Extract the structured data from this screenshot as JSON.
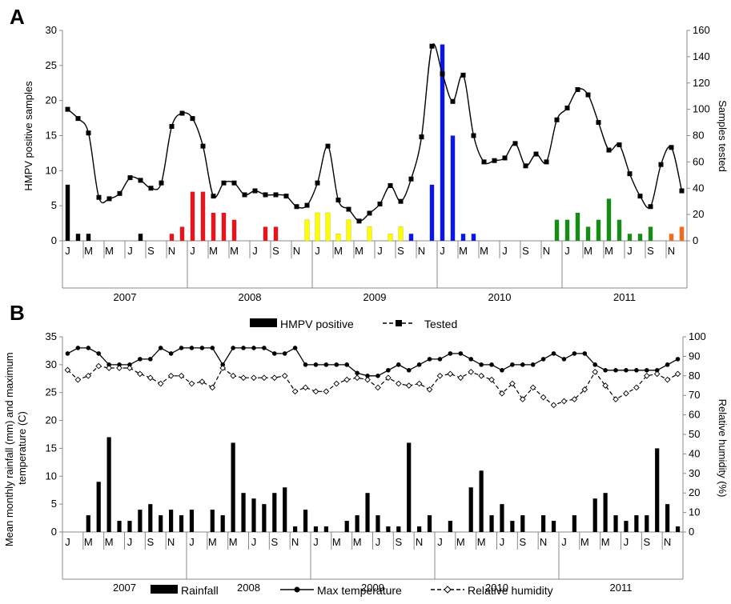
{
  "months": [
    "J",
    "M",
    "M",
    "J",
    "S",
    "N",
    "J",
    "M",
    "M",
    "J",
    "S",
    "N",
    "J",
    "M",
    "M",
    "J",
    "S",
    "N",
    "J",
    "M",
    "M",
    "J",
    "S",
    "N",
    "J",
    "M",
    "M",
    "J",
    "S",
    "N"
  ],
  "years": [
    "2007",
    "2008",
    "2009",
    "2010",
    "2011"
  ],
  "chart_data": [
    {
      "panel": "A",
      "type": "bar",
      "n_months": 60,
      "ylabel": "HMPV positive samples",
      "y2label": "Samples tested",
      "ylim": [
        0,
        30
      ],
      "y2lim": [
        0,
        160
      ],
      "yticks": [
        "0",
        "5",
        "10",
        "15",
        "20",
        "25",
        "30"
      ],
      "y2ticks": [
        "0",
        "20",
        "40",
        "60",
        "80",
        "100",
        "120",
        "140",
        "160"
      ],
      "year_colors": [
        "#000000",
        "#e8141c",
        "#ffff00",
        "#0a16e6",
        "#168c16",
        "#f26b1c"
      ],
      "bar_color_breaks": [
        0,
        9,
        21,
        33,
        45,
        57,
        60
      ],
      "series": [
        {
          "name": "HMPV positive",
          "kind": "bar",
          "values": [
            8,
            1,
            1,
            0,
            0,
            0,
            0,
            1,
            0,
            0,
            1,
            2,
            7,
            7,
            4,
            4,
            3,
            0,
            0,
            2,
            2,
            0,
            0,
            3,
            4,
            4,
            1,
            3,
            0,
            2,
            0,
            1,
            2,
            1,
            0,
            8,
            28,
            15,
            1,
            1,
            0,
            0,
            0,
            0,
            0,
            0,
            0,
            3,
            3,
            4,
            2,
            3,
            6,
            3,
            1,
            1,
            2,
            0,
            1,
            2
          ]
        },
        {
          "name": "Samples tested",
          "kind": "line",
          "axis": "right",
          "values": [
            100,
            93,
            82,
            33,
            32,
            36,
            48,
            46,
            40,
            44,
            87,
            97,
            93,
            72,
            34,
            44,
            44,
            35,
            38,
            35,
            35,
            34,
            26,
            27,
            44,
            72,
            31,
            24,
            15,
            21,
            28,
            42,
            30,
            47,
            79,
            148,
            127,
            106,
            126,
            80,
            60,
            61,
            63,
            74,
            57,
            66,
            60,
            92,
            101,
            115,
            111,
            90,
            69,
            73,
            51,
            34,
            26,
            58,
            71,
            38
          ]
        }
      ]
    },
    {
      "panel": "B",
      "type": "bar",
      "n_months": 60,
      "ylabel": "Mean monthly rainfall (mm) and maximum temperature (C)",
      "y2label": "Relative humidity (%)",
      "ylim": [
        0,
        35
      ],
      "y2lim": [
        0,
        100
      ],
      "yticks": [
        "0",
        "5",
        "10",
        "15",
        "20",
        "25",
        "30",
        "35"
      ],
      "y2ticks": [
        "0",
        "10",
        "20",
        "30",
        "40",
        "50",
        "60",
        "70",
        "80",
        "90",
        "100"
      ],
      "series": [
        {
          "name": "Rainfall",
          "kind": "bar",
          "values": [
            0,
            0,
            3,
            9,
            17,
            2,
            2,
            4,
            5,
            3,
            4,
            3,
            4,
            0,
            4,
            3,
            16,
            7,
            6,
            5,
            7,
            8,
            1,
            4,
            1,
            1,
            0,
            2,
            3,
            7,
            3,
            1,
            1,
            16,
            1,
            3,
            0,
            2,
            0,
            8,
            11,
            3,
            5,
            2,
            3,
            0,
            3,
            2,
            0,
            3,
            0,
            6,
            7,
            3,
            2,
            3,
            3,
            15,
            5,
            1
          ]
        },
        {
          "name": "Max temperature",
          "kind": "line",
          "values": [
            32,
            33,
            33,
            32,
            30,
            30,
            30,
            31,
            31,
            33,
            32,
            33,
            33,
            33,
            33,
            30,
            33,
            33,
            33,
            33,
            32,
            32,
            33,
            30,
            30,
            30,
            30,
            30,
            28.5,
            28,
            28,
            29,
            30,
            29,
            30,
            31,
            31,
            32,
            32,
            31,
            30,
            30,
            29,
            30,
            30,
            30,
            31,
            32,
            31,
            32,
            32,
            30,
            29,
            29,
            29,
            29,
            29,
            29,
            30,
            31
          ]
        },
        {
          "name": "Relative humidity",
          "kind": "line",
          "axis": "right",
          "values": [
            83,
            78,
            80,
            85,
            84,
            84,
            84,
            81,
            79,
            76,
            80,
            80,
            76,
            77,
            74,
            84,
            80,
            79,
            79,
            79,
            79,
            80,
            72,
            74,
            72,
            72,
            76,
            78,
            79,
            78,
            74,
            79,
            76,
            75,
            76,
            73,
            80,
            81,
            79,
            82,
            80,
            78,
            71,
            76,
            68,
            74,
            69,
            65,
            67,
            68,
            73,
            82,
            75,
            68,
            71,
            74,
            80,
            81,
            78,
            81
          ]
        }
      ]
    }
  ],
  "panel_b_legend_top": {
    "bar": "HMPV positive",
    "line": "Tested"
  },
  "panel_b_legend_bottom": {
    "bar": "Rainfall",
    "line1": "Max temperature",
    "line2": "Relative humidity"
  }
}
